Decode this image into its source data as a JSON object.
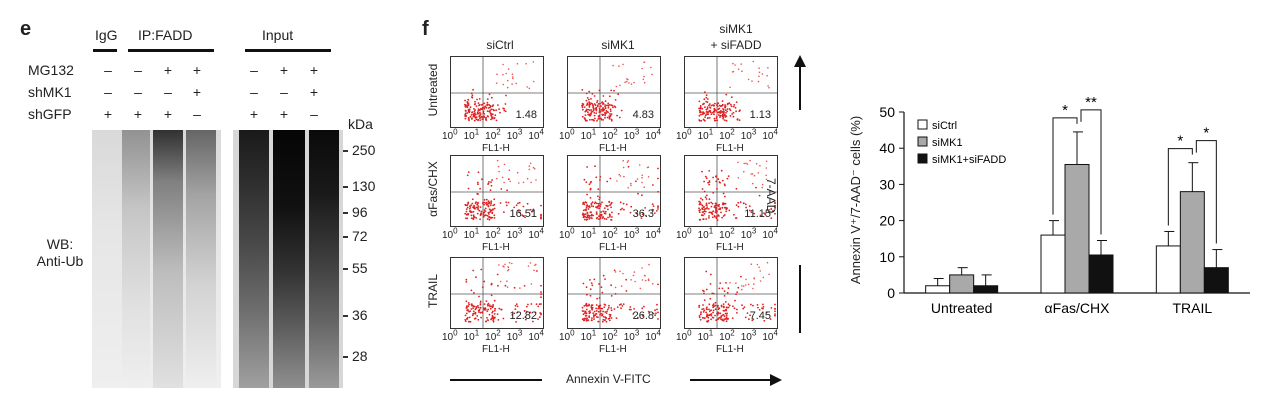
{
  "panel_e": {
    "letter": "e",
    "headers": {
      "igg": "IgG",
      "ip": "IP:FADD",
      "input": "Input"
    },
    "rows": [
      {
        "label": "MG132",
        "signs": [
          "–",
          "–",
          "+",
          "+",
          "–",
          "+",
          "+"
        ]
      },
      {
        "label": "shMK1",
        "signs": [
          "–",
          "–",
          "–",
          "+",
          "–",
          "–",
          "+"
        ]
      },
      {
        "label": "shGFP",
        "signs": [
          "+",
          "+",
          "+",
          "–",
          "+",
          "+",
          "–"
        ]
      }
    ],
    "kda_label": "kDa",
    "markers": [
      "250",
      "130",
      "96",
      "72",
      "55",
      "36",
      "28"
    ],
    "wb_label_1": "WB:",
    "wb_label_2": "Anti-Ub"
  },
  "panel_f": {
    "letter": "f",
    "columns": [
      "siCtrl",
      "siMK1",
      "siMK1",
      "+ siFADD"
    ],
    "row_labels": [
      "Untreated",
      "αFas/CHX",
      "TRAIL"
    ],
    "percentages": [
      [
        "1.48",
        "4.83",
        "1.13"
      ],
      [
        "16.51",
        "36.3",
        "11.15"
      ],
      [
        "12.82",
        "26.8",
        "7.45"
      ]
    ],
    "x_ticks": [
      "10",
      "0",
      "10",
      "1",
      "10",
      "2",
      "10",
      "3",
      "10",
      "4"
    ],
    "x_axis_label": "FL1-H",
    "bottom_label": "Annexin V-FITC",
    "right_label": "7-AAD"
  },
  "chart_data": {
    "type": "bar",
    "categories": [
      "Untreated",
      "αFas/CHX",
      "TRAIL"
    ],
    "series": [
      {
        "name": "siCtrl",
        "values": [
          2,
          16,
          13
        ],
        "errors": [
          2,
          4,
          4
        ],
        "color": "#ffffff"
      },
      {
        "name": "siMK1",
        "values": [
          5,
          35.5,
          28
        ],
        "errors": [
          2,
          9,
          8
        ],
        "color": "#a9a9a9"
      },
      {
        "name": "siMK1+siFADD",
        "values": [
          2,
          10.5,
          7
        ],
        "errors": [
          3,
          4,
          5
        ],
        "color": "#111111"
      }
    ],
    "ylabel": "Annexin V⁺/7-AAD⁻ cells (%)",
    "ylim": [
      0,
      50
    ],
    "yticks": [
      "0",
      "10",
      "20",
      "30",
      "40",
      "50"
    ],
    "significance": [
      {
        "category": "αFas/CHX",
        "marks": [
          "*",
          "**"
        ]
      },
      {
        "category": "TRAIL",
        "marks": [
          "*",
          "*"
        ]
      }
    ],
    "legend_position": "top-left",
    "grid": false
  }
}
